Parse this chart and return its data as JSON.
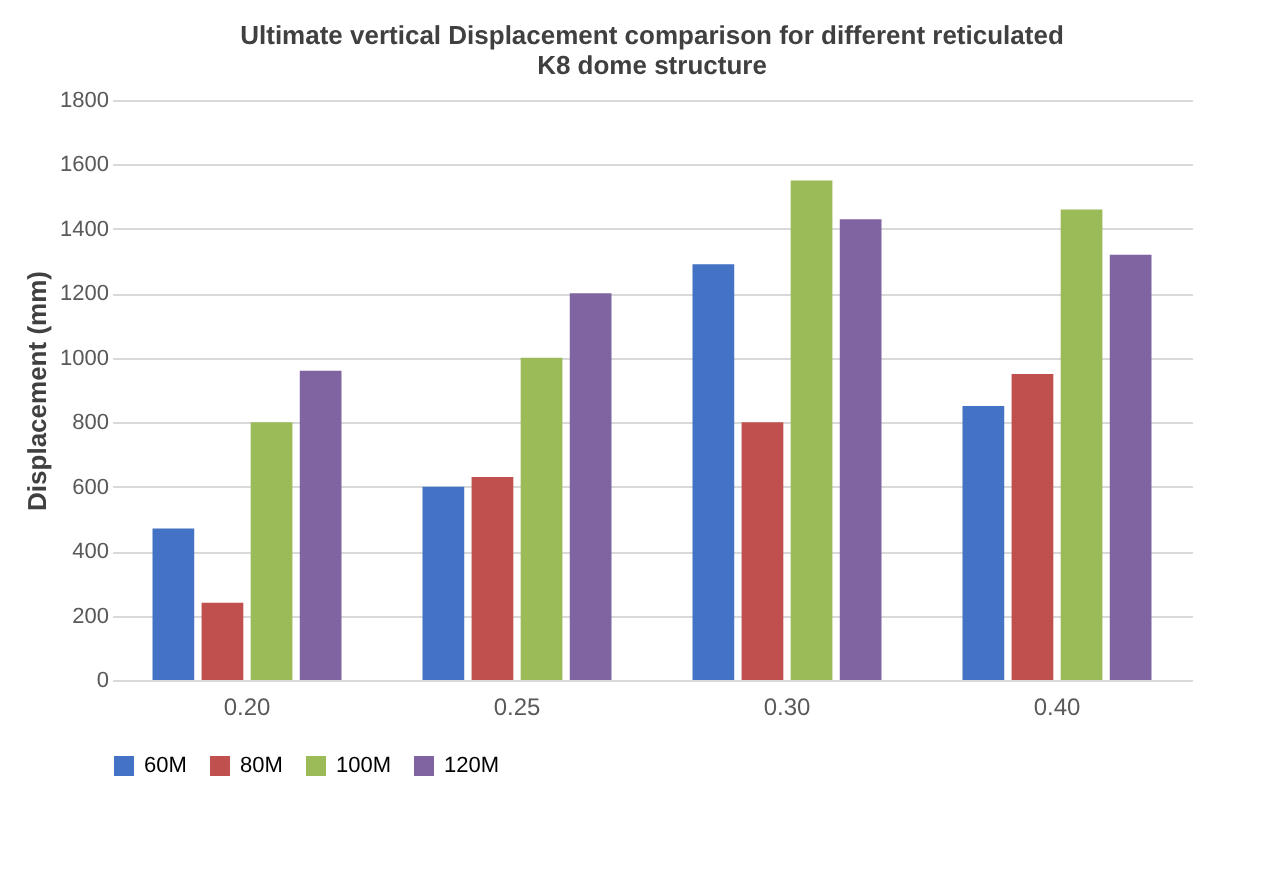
{
  "chart_data": {
    "type": "bar",
    "title": [
      "Ultimate vertical Displacement comparison for different reticulated",
      "K8 dome structure"
    ],
    "ylabel": "Displacement (mm)",
    "categories": [
      "0.20",
      "0.25",
      "0.30",
      "0.40"
    ],
    "series": [
      {
        "name": "60M",
        "color": "#4472c4",
        "values": [
          470,
          600,
          1290,
          850
        ]
      },
      {
        "name": "80M",
        "color": "#c0504d",
        "values": [
          240,
          630,
          800,
          950
        ]
      },
      {
        "name": "100M",
        "color": "#9bbb59",
        "values": [
          800,
          1000,
          1550,
          1460
        ]
      },
      {
        "name": "120M",
        "color": "#8064a2",
        "values": [
          960,
          1200,
          1430,
          1320
        ]
      }
    ],
    "ylim": [
      0,
      1800
    ],
    "yticks": [
      0,
      200,
      400,
      600,
      800,
      1000,
      1200,
      1400,
      1600,
      1800
    ],
    "grid": "y",
    "legend": "bottom"
  }
}
